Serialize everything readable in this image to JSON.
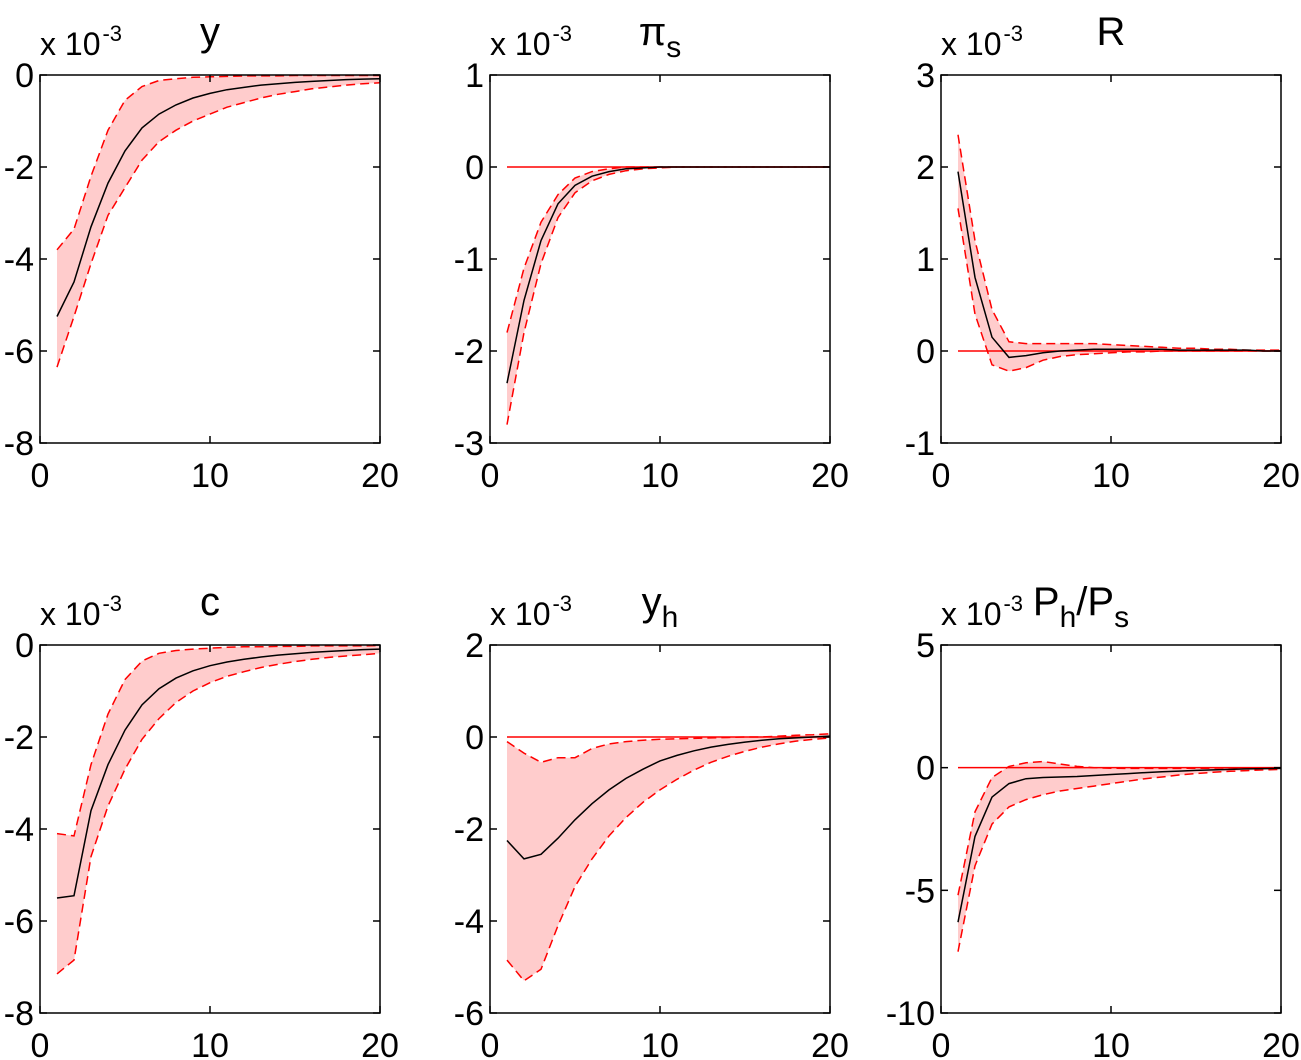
{
  "chart_data": [
    {
      "type": "area",
      "title": {
        "main": "y",
        "sub": ""
      },
      "exponent": {
        "base": "x 10",
        "power": "-3"
      },
      "xticks": [
        "0",
        "10",
        "20"
      ],
      "yticks": [
        "0",
        "-2",
        "-4",
        "-6",
        "-8"
      ],
      "xlim": [
        0,
        20
      ],
      "ylim": [
        -8,
        0
      ],
      "zero_line": false,
      "x": [
        1,
        2,
        3,
        4,
        5,
        6,
        7,
        8,
        9,
        10,
        11,
        12,
        13,
        14,
        15,
        16,
        17,
        18,
        19,
        20
      ],
      "series": [
        {
          "role": "median",
          "values": [
            -5.25,
            -4.5,
            -3.3,
            -2.35,
            -1.65,
            -1.15,
            -0.85,
            -0.65,
            -0.5,
            -0.4,
            -0.32,
            -0.27,
            -0.22,
            -0.19,
            -0.16,
            -0.14,
            -0.12,
            -0.1,
            -0.09,
            -0.08
          ]
        },
        {
          "role": "upper",
          "values": [
            -3.8,
            -3.35,
            -2.2,
            -1.2,
            -0.55,
            -0.25,
            -0.12,
            -0.08,
            -0.05,
            -0.04,
            -0.03,
            -0.02,
            -0.02,
            -0.02,
            -0.01,
            -0.01,
            -0.01,
            -0.01,
            -0.01,
            -0.01
          ]
        },
        {
          "role": "lower",
          "values": [
            -6.35,
            -5.25,
            -4.1,
            -3.05,
            -2.45,
            -1.85,
            -1.45,
            -1.2,
            -1.0,
            -0.85,
            -0.7,
            -0.6,
            -0.5,
            -0.42,
            -0.36,
            -0.3,
            -0.26,
            -0.22,
            -0.19,
            -0.17
          ]
        }
      ]
    },
    {
      "type": "area",
      "title": {
        "main": "π",
        "sub": "s"
      },
      "exponent": {
        "base": "x 10",
        "power": "-3"
      },
      "xticks": [
        "0",
        "10",
        "20"
      ],
      "yticks": [
        "1",
        "0",
        "-1",
        "-2",
        "-3"
      ],
      "xlim": [
        0,
        20
      ],
      "ylim": [
        -3,
        1
      ],
      "zero_line": true,
      "x": [
        1,
        2,
        3,
        4,
        5,
        6,
        7,
        8,
        9,
        10,
        11,
        12,
        13,
        14,
        15,
        16,
        17,
        18,
        19,
        20
      ],
      "series": [
        {
          "role": "median",
          "values": [
            -2.35,
            -1.45,
            -0.8,
            -0.4,
            -0.2,
            -0.1,
            -0.05,
            -0.02,
            -0.01,
            0,
            0,
            0,
            0,
            0,
            0,
            0,
            0,
            0,
            0,
            0
          ]
        },
        {
          "role": "upper",
          "values": [
            -1.8,
            -1.1,
            -0.6,
            -0.3,
            -0.12,
            -0.05,
            -0.02,
            0,
            0,
            0,
            0,
            0,
            0,
            0,
            0,
            0,
            0,
            0,
            0,
            0
          ]
        },
        {
          "role": "lower",
          "values": [
            -2.8,
            -1.8,
            -1.05,
            -0.55,
            -0.28,
            -0.15,
            -0.08,
            -0.04,
            -0.02,
            -0.01,
            0,
            0,
            0,
            0,
            0,
            0,
            0,
            0,
            0,
            0
          ]
        }
      ]
    },
    {
      "type": "area",
      "title": {
        "main": "R",
        "sub": ""
      },
      "exponent": {
        "base": "x 10",
        "power": "-3"
      },
      "xticks": [
        "0",
        "10",
        "20"
      ],
      "yticks": [
        "3",
        "2",
        "1",
        "0",
        "-1"
      ],
      "xlim": [
        0,
        20
      ],
      "ylim": [
        -1,
        3
      ],
      "zero_line": true,
      "x": [
        1,
        2,
        3,
        4,
        5,
        6,
        7,
        8,
        9,
        10,
        11,
        12,
        13,
        14,
        15,
        16,
        17,
        18,
        19,
        20
      ],
      "series": [
        {
          "role": "median",
          "values": [
            1.95,
            0.8,
            0.15,
            -0.07,
            -0.05,
            -0.02,
            0,
            0.01,
            0.02,
            0.02,
            0.02,
            0.02,
            0.02,
            0.01,
            0.01,
            0.01,
            0.01,
            0.01,
            0,
            0
          ]
        },
        {
          "role": "upper",
          "values": [
            2.35,
            1.2,
            0.45,
            0.1,
            0.08,
            0.08,
            0.08,
            0.08,
            0.08,
            0.07,
            0.06,
            0.05,
            0.04,
            0.03,
            0.03,
            0.02,
            0.02,
            0.01,
            0.01,
            0.01
          ]
        },
        {
          "role": "lower",
          "values": [
            1.55,
            0.4,
            -0.15,
            -0.22,
            -0.18,
            -0.1,
            -0.06,
            -0.04,
            -0.03,
            -0.02,
            -0.01,
            -0.01,
            0,
            0,
            0,
            0,
            0,
            0,
            0,
            0
          ]
        }
      ]
    },
    {
      "type": "area",
      "title": {
        "main": "c",
        "sub": ""
      },
      "exponent": {
        "base": "x 10",
        "power": "-3"
      },
      "xticks": [
        "0",
        "10",
        "20"
      ],
      "yticks": [
        "0",
        "-2",
        "-4",
        "-6",
        "-8"
      ],
      "xlim": [
        0,
        20
      ],
      "ylim": [
        -8,
        0
      ],
      "zero_line": false,
      "x": [
        1,
        2,
        3,
        4,
        5,
        6,
        7,
        8,
        9,
        10,
        11,
        12,
        13,
        14,
        15,
        16,
        17,
        18,
        19,
        20
      ],
      "series": [
        {
          "role": "median",
          "values": [
            -5.5,
            -5.45,
            -3.6,
            -2.6,
            -1.85,
            -1.3,
            -0.95,
            -0.72,
            -0.56,
            -0.45,
            -0.37,
            -0.31,
            -0.26,
            -0.22,
            -0.19,
            -0.16,
            -0.14,
            -0.12,
            -0.1,
            -0.09
          ]
        },
        {
          "role": "upper",
          "values": [
            -4.1,
            -4.15,
            -2.6,
            -1.5,
            -0.75,
            -0.35,
            -0.18,
            -0.12,
            -0.09,
            -0.07,
            -0.05,
            -0.04,
            -0.04,
            -0.03,
            -0.03,
            -0.02,
            -0.02,
            -0.02,
            -0.02,
            -0.01
          ]
        },
        {
          "role": "lower",
          "values": [
            -7.15,
            -6.85,
            -4.6,
            -3.5,
            -2.7,
            -2.05,
            -1.6,
            -1.25,
            -1.0,
            -0.82,
            -0.68,
            -0.58,
            -0.49,
            -0.42,
            -0.36,
            -0.31,
            -0.27,
            -0.24,
            -0.21,
            -0.18
          ]
        }
      ]
    },
    {
      "type": "area",
      "title": {
        "main": "y",
        "sub": "h"
      },
      "exponent": {
        "base": "x 10",
        "power": "-3"
      },
      "xticks": [
        "0",
        "10",
        "20"
      ],
      "yticks": [
        "2",
        "0",
        "-2",
        "-4",
        "-6"
      ],
      "xlim": [
        0,
        20
      ],
      "ylim": [
        -6,
        2
      ],
      "zero_line": true,
      "x": [
        1,
        2,
        3,
        4,
        5,
        6,
        7,
        8,
        9,
        10,
        11,
        12,
        13,
        14,
        15,
        16,
        17,
        18,
        19,
        20
      ],
      "series": [
        {
          "role": "median",
          "values": [
            -2.25,
            -2.65,
            -2.55,
            -2.2,
            -1.8,
            -1.45,
            -1.15,
            -0.9,
            -0.7,
            -0.52,
            -0.4,
            -0.3,
            -0.22,
            -0.16,
            -0.11,
            -0.07,
            -0.04,
            -0.02,
            0,
            0.02
          ]
        },
        {
          "role": "upper",
          "values": [
            -0.1,
            -0.35,
            -0.55,
            -0.45,
            -0.45,
            -0.25,
            -0.15,
            -0.1,
            -0.07,
            -0.05,
            -0.04,
            -0.03,
            -0.02,
            -0.01,
            0,
            0,
            0.02,
            0.04,
            0.05,
            0.07
          ]
        },
        {
          "role": "lower",
          "values": [
            -4.85,
            -5.3,
            -5.05,
            -4.1,
            -3.25,
            -2.65,
            -2.15,
            -1.75,
            -1.42,
            -1.15,
            -0.92,
            -0.72,
            -0.55,
            -0.42,
            -0.31,
            -0.22,
            -0.15,
            -0.09,
            -0.05,
            -0.02
          ]
        }
      ]
    },
    {
      "type": "area",
      "title": {
        "main": "P",
        "sub": "h",
        "main2": "/P",
        "sub2": "s"
      },
      "exponent": {
        "base": "x 10",
        "power": "-3"
      },
      "xticks": [
        "0",
        "10",
        "20"
      ],
      "yticks": [
        "5",
        "0",
        "-5",
        "-10"
      ],
      "xlim": [
        0,
        20
      ],
      "ylim": [
        -10,
        5
      ],
      "zero_line": true,
      "x": [
        1,
        2,
        3,
        4,
        5,
        6,
        7,
        8,
        9,
        10,
        11,
        12,
        13,
        14,
        15,
        16,
        17,
        18,
        19,
        20
      ],
      "series": [
        {
          "role": "median",
          "values": [
            -6.3,
            -2.8,
            -1.2,
            -0.65,
            -0.45,
            -0.4,
            -0.38,
            -0.36,
            -0.32,
            -0.28,
            -0.24,
            -0.2,
            -0.17,
            -0.14,
            -0.11,
            -0.09,
            -0.07,
            -0.05,
            -0.04,
            -0.03
          ]
        },
        {
          "role": "upper",
          "values": [
            -5.2,
            -1.8,
            -0.4,
            0.05,
            0.2,
            0.25,
            0.15,
            0.05,
            0,
            -0.02,
            -0.03,
            -0.03,
            -0.03,
            -0.03,
            -0.02,
            -0.02,
            -0.01,
            -0.01,
            -0.01,
            -0.01
          ]
        },
        {
          "role": "lower",
          "values": [
            -7.5,
            -4.0,
            -2.3,
            -1.6,
            -1.3,
            -1.1,
            -0.95,
            -0.85,
            -0.75,
            -0.65,
            -0.55,
            -0.45,
            -0.38,
            -0.3,
            -0.24,
            -0.19,
            -0.15,
            -0.12,
            -0.09,
            -0.07
          ]
        }
      ]
    }
  ],
  "colors": {
    "band_fill": "#ffcccc",
    "band_edge": "#ff0000",
    "median_line": "#000000",
    "zero_line": "#ff0000",
    "axes": "#000000",
    "background": "#ffffff"
  }
}
